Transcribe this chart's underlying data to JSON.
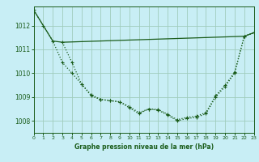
{
  "bg_color": "#c8eef5",
  "grid_color": "#a0ccbc",
  "line_color": "#1a5c1a",
  "title": "Graphe pression niveau de la mer (hPa)",
  "xlim": [
    0,
    23
  ],
  "ylim": [
    1007.5,
    1012.8
  ],
  "yticks": [
    1008,
    1009,
    1010,
    1011,
    1012
  ],
  "xticks": [
    0,
    1,
    2,
    3,
    4,
    5,
    6,
    7,
    8,
    9,
    10,
    11,
    12,
    13,
    14,
    15,
    16,
    17,
    18,
    19,
    20,
    21,
    22,
    23
  ],
  "line1_x": [
    0,
    2,
    3,
    22,
    23
  ],
  "line1_y": [
    1012.65,
    1011.35,
    1011.3,
    1011.55,
    1011.7
  ],
  "line2_x": [
    0,
    1,
    2,
    3,
    4,
    5,
    6,
    7,
    8,
    9,
    10,
    11,
    12,
    13,
    14,
    15,
    16,
    17,
    18,
    19,
    20,
    21,
    22,
    23
  ],
  "line2_y": [
    1012.65,
    1012.0,
    1011.35,
    1010.45,
    1010.0,
    1009.55,
    1009.05,
    1008.9,
    1008.85,
    1008.8,
    1008.55,
    1008.3,
    1008.5,
    1008.45,
    1008.25,
    1008.0,
    1008.1,
    1008.15,
    1008.3,
    1009.0,
    1009.45,
    1010.0,
    1011.55,
    1011.7
  ],
  "line3_x": [
    3,
    4,
    5,
    6,
    7,
    8,
    9,
    10,
    11,
    12,
    13,
    14,
    15,
    16,
    17,
    18,
    19,
    20,
    21,
    22,
    23
  ],
  "line3_y": [
    1011.3,
    1010.45,
    1009.55,
    1009.1,
    1008.9,
    1008.85,
    1008.8,
    1008.6,
    1008.35,
    1008.5,
    1008.48,
    1008.28,
    1008.05,
    1008.15,
    1008.2,
    1008.35,
    1009.05,
    1009.5,
    1010.05,
    1011.55,
    1011.7
  ]
}
